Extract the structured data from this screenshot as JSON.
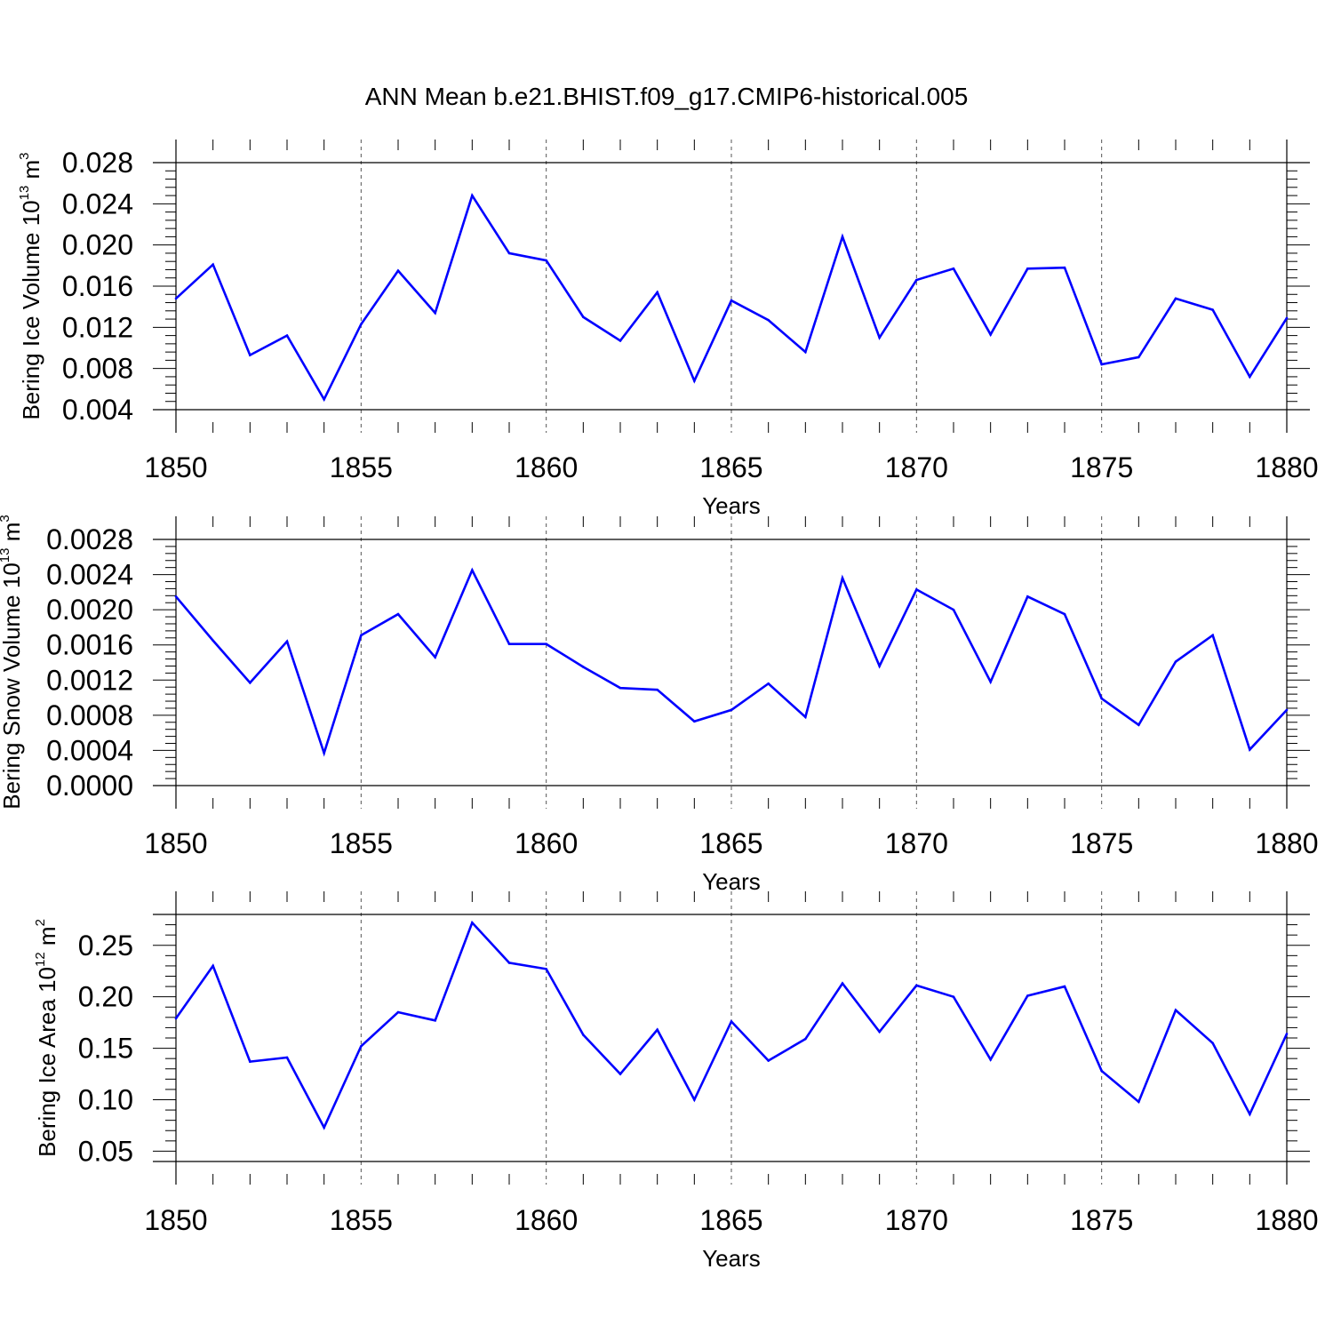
{
  "title": "ANN Mean b.e21.BHIST.f09_g17.CMIP6-historical.005",
  "colors": {
    "line": "#0000ff",
    "axis": "#000000",
    "grid": "#555555"
  },
  "chart_data": [
    {
      "type": "line",
      "ylabel": {
        "main": "Bering Ice Volume 10",
        "exp": "13",
        "unit": " m",
        "unit_exp": "3"
      },
      "xlabel": "Years",
      "xlim": [
        1850,
        1880
      ],
      "ylim": [
        0.004,
        0.028
      ],
      "yticks": [
        "0.004",
        "0.008",
        "0.012",
        "0.016",
        "0.020",
        "0.024",
        "0.028"
      ],
      "xticks": [
        "1850",
        "1855",
        "1860",
        "1865",
        "1870",
        "1875",
        "1880"
      ],
      "x": [
        1850,
        1851,
        1852,
        1853,
        1854,
        1855,
        1856,
        1857,
        1858,
        1859,
        1860,
        1861,
        1862,
        1863,
        1864,
        1865,
        1866,
        1867,
        1868,
        1869,
        1870,
        1871,
        1872,
        1873,
        1874,
        1875,
        1876,
        1877,
        1878,
        1879,
        1880
      ],
      "values": [
        0.0148,
        0.0181,
        0.0093,
        0.0112,
        0.005,
        0.0123,
        0.0175,
        0.0134,
        0.0248,
        0.0192,
        0.0185,
        0.013,
        0.0107,
        0.0154,
        0.0068,
        0.0146,
        0.0127,
        0.0096,
        0.0208,
        0.011,
        0.0166,
        0.0177,
        0.0113,
        0.0177,
        0.0178,
        0.0084,
        0.0091,
        0.0148,
        0.0137,
        0.0072,
        0.0129
      ]
    },
    {
      "type": "line",
      "ylabel": {
        "main": "Bering Snow Volume 10",
        "exp": "13",
        "unit": " m",
        "unit_exp": "3"
      },
      "xlabel": "Years",
      "xlim": [
        1850,
        1880
      ],
      "ylim": [
        0.0,
        0.0028
      ],
      "yticks": [
        "0.0000",
        "0.0004",
        "0.0008",
        "0.0012",
        "0.0016",
        "0.0020",
        "0.0024",
        "0.0028"
      ],
      "xticks": [
        "1850",
        "1855",
        "1860",
        "1865",
        "1870",
        "1875",
        "1880"
      ],
      "x": [
        1850,
        1851,
        1852,
        1853,
        1854,
        1855,
        1856,
        1857,
        1858,
        1859,
        1860,
        1861,
        1862,
        1863,
        1864,
        1865,
        1866,
        1867,
        1868,
        1869,
        1870,
        1871,
        1872,
        1873,
        1874,
        1875,
        1876,
        1877,
        1878,
        1879,
        1880
      ],
      "values": [
        0.00215,
        0.00165,
        0.00117,
        0.00164,
        0.00037,
        0.00171,
        0.00195,
        0.00146,
        0.00245,
        0.00161,
        0.00161,
        0.00135,
        0.00111,
        0.00109,
        0.00073,
        0.00086,
        0.00116,
        0.00078,
        0.00236,
        0.00136,
        0.00223,
        0.002,
        0.00118,
        0.00215,
        0.00195,
        0.00099,
        0.00069,
        0.00141,
        0.00171,
        0.00041,
        0.00086
      ]
    },
    {
      "type": "line",
      "ylabel": {
        "main": "Bering Ice Area 10",
        "exp": "12",
        "unit": " m",
        "unit_exp": "2"
      },
      "xlabel": "Years",
      "xlim": [
        1850,
        1880
      ],
      "ylim": [
        0.04,
        0.28
      ],
      "yticks": [
        "0.05",
        "0.10",
        "0.15",
        "0.20",
        "0.25"
      ],
      "yticks_values": [
        0.05,
        0.1,
        0.15,
        0.2,
        0.25
      ],
      "xticks": [
        "1850",
        "1855",
        "1860",
        "1865",
        "1870",
        "1875",
        "1880"
      ],
      "x": [
        1850,
        1851,
        1852,
        1853,
        1854,
        1855,
        1856,
        1857,
        1858,
        1859,
        1860,
        1861,
        1862,
        1863,
        1864,
        1865,
        1866,
        1867,
        1868,
        1869,
        1870,
        1871,
        1872,
        1873,
        1874,
        1875,
        1876,
        1877,
        1878,
        1879,
        1880
      ],
      "values": [
        0.179,
        0.23,
        0.137,
        0.141,
        0.073,
        0.152,
        0.185,
        0.177,
        0.272,
        0.233,
        0.227,
        0.163,
        0.125,
        0.168,
        0.1,
        0.176,
        0.138,
        0.159,
        0.213,
        0.166,
        0.211,
        0.2,
        0.139,
        0.201,
        0.21,
        0.128,
        0.098,
        0.187,
        0.155,
        0.086,
        0.164
      ]
    }
  ]
}
